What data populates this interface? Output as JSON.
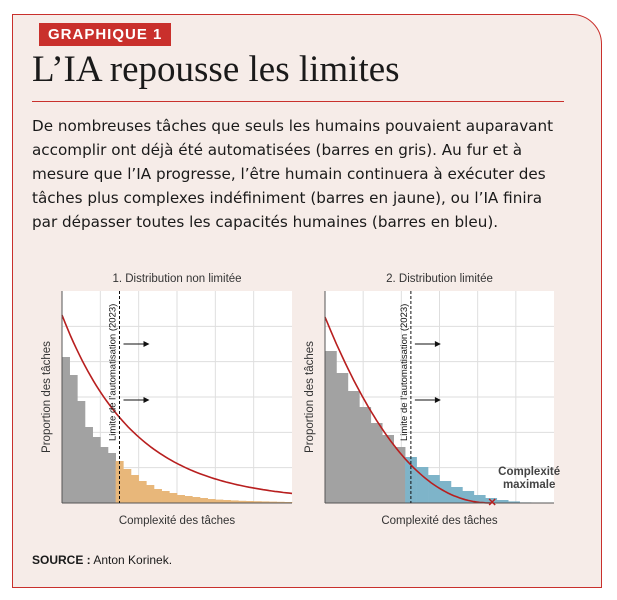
{
  "header": {
    "tag": "GRAPHIQUE 1",
    "title": "L’IA repousse les limites",
    "description": "De nombreuses tâches que seuls les humains pouvaient auparavant accomplir ont déjà été automatisées (barres en gris). Au fur et à mesure que l’IA progresse, l’être humain continuera à exécuter des tâches plus complexes indéfiniment (barres en jaune), ou l’IA finira par dépasser toutes les capacités humaines (barres en bleu)."
  },
  "footer": {
    "source_label": "SOURCE :",
    "source_text": "Anton Korinek."
  },
  "colors": {
    "accent": "#c9302c",
    "card_bg": "#f6ece8",
    "automated": "#a2a2a2",
    "human": "#e8b77a",
    "ai": "#7eb4c9",
    "curve": "#b81f1f",
    "grid": "#dedede"
  },
  "chart_data": [
    {
      "type": "bar",
      "title": "1. Distribution non limitée",
      "xlabel": "Complexité des tâches",
      "ylabel": "Proportion des tâches",
      "annotation": "Limite de l’automatisation (2023)",
      "limit_bin": 7,
      "bar_colors": [
        "automated",
        "human"
      ],
      "values": [
        0.73,
        0.64,
        0.51,
        0.38,
        0.33,
        0.28,
        0.25,
        0.21,
        0.17,
        0.14,
        0.11,
        0.09,
        0.07,
        0.06,
        0.05,
        0.04,
        0.035,
        0.03,
        0.025,
        0.02,
        0.017,
        0.015,
        0.013,
        0.011,
        0.01,
        0.009,
        0.008,
        0.007,
        0.006,
        0.005
      ],
      "curve": "exponential",
      "grid": true
    },
    {
      "type": "bar",
      "title": "2. Distribution limitée",
      "xlabel": "Complexité des tâches",
      "ylabel": "Proportion des tâches",
      "annotation": "Limite de l’automatisation (2023)",
      "end_label": [
        "Complexité",
        "maximale"
      ],
      "limit_bin": 7,
      "bar_colors": [
        "automated",
        "ai"
      ],
      "values": [
        0.76,
        0.65,
        0.56,
        0.48,
        0.4,
        0.34,
        0.28,
        0.23,
        0.18,
        0.14,
        0.11,
        0.08,
        0.06,
        0.04,
        0.025,
        0.015,
        0.008,
        0.003,
        0.001,
        0
      ],
      "curve": "bounded",
      "grid": true
    }
  ]
}
